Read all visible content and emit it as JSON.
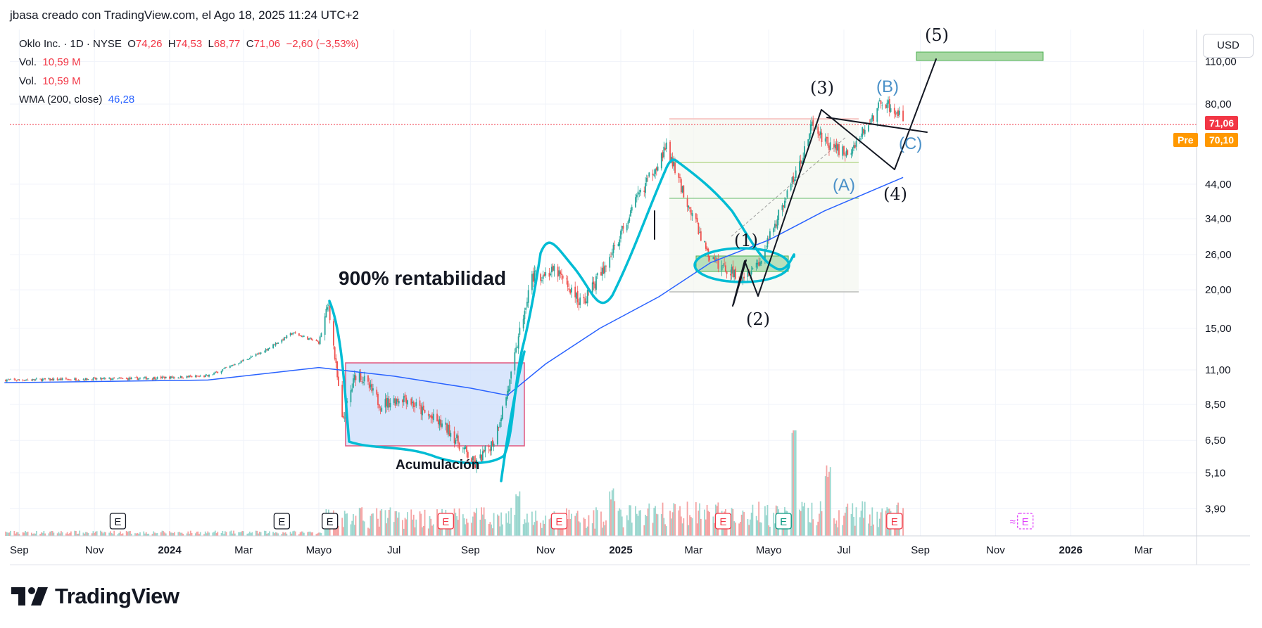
{
  "header": {
    "author_line": "jbasa creado con TradingView.com, el Ago 18, 2025 11:24 UTC+2"
  },
  "legend": {
    "symbol": "Oklo Inc. · 1D · NYSE",
    "o_label": "O",
    "o_value": "74,26",
    "h_label": "H",
    "h_value": "74,53",
    "l_label": "L",
    "l_value": "68,77",
    "c_label": "C",
    "c_value": "71,06",
    "change": "−2,60 (−3,53%)",
    "vol1_label": "Vol.",
    "vol1_value": "10,59 M",
    "vol2_label": "Vol.",
    "vol2_value": "10,59 M",
    "wma_label": "WMA (200, close)",
    "wma_value": "46,28"
  },
  "price_axis": {
    "currency": "USD",
    "ticks": [
      "110,00",
      "80,00",
      "44,00",
      "34,00",
      "26,00",
      "20,00",
      "15,00",
      "11,00",
      "8,50",
      "6,50",
      "5,10",
      "3,90"
    ],
    "last_price_tag": "71,06",
    "pre_label": "Pre",
    "pre_price_tag": "70,10"
  },
  "time_axis": {
    "ticks": [
      "Sep",
      "Nov",
      "2024",
      "Mar",
      "Mayo",
      "Jul",
      "Sep",
      "Nov",
      "2025",
      "Mar",
      "Mayo",
      "Jul",
      "Sep",
      "Nov",
      "2026",
      "Mar"
    ]
  },
  "annotations": {
    "title": "900% rentabilidad",
    "accumulation": "Acumulación",
    "wave_1": "(1)",
    "wave_2": "(2)",
    "wave_3": "(3)",
    "wave_4": "(4)",
    "wave_5": "(5)",
    "wave_a": "(A)",
    "wave_b": "(B)",
    "wave_c": "(C)"
  },
  "events": {
    "earnings_label": "E",
    "dividend_symbol": "≈"
  },
  "brand": {
    "name": "TradingView"
  },
  "colors": {
    "up": "#26a69a",
    "down": "#ef5350",
    "wma": "#2962ff",
    "highlight": "#00bcd4",
    "last_price": "#f23645",
    "pre": "#ff9800",
    "wave_blue": "#4a90c8"
  },
  "chart_data": {
    "type": "candlestick",
    "title": "Oklo Inc. · 1D · NYSE",
    "scale": "log",
    "ylim": [
      3.6,
      125
    ],
    "y_ticks": [
      110,
      80,
      44,
      34,
      26,
      20,
      15,
      11,
      8.5,
      6.5,
      5.1,
      3.9
    ],
    "x_range": [
      "2023-09",
      "2026-04"
    ],
    "price_path": [
      [
        "2023-08-20",
        10.2
      ],
      [
        "2023-12-01",
        10.3
      ],
      [
        "2024-02-01",
        10.5
      ],
      [
        "2024-03-15",
        12.5
      ],
      [
        "2024-04-10",
        14.5
      ],
      [
        "2024-05-01",
        13.5
      ],
      [
        "2024-05-09",
        18.0
      ],
      [
        "2024-05-20",
        7.5
      ],
      [
        "2024-06-01",
        11.0
      ],
      [
        "2024-06-20",
        8.5
      ],
      [
        "2024-07-10",
        9.0
      ],
      [
        "2024-07-25",
        8.0
      ],
      [
        "2024-08-15",
        7.0
      ],
      [
        "2024-09-05",
        5.4
      ],
      [
        "2024-09-20",
        6.5
      ],
      [
        "2024-10-03",
        10.0
      ],
      [
        "2024-10-20",
        22.0
      ],
      [
        "2024-11-10",
        23.0
      ],
      [
        "2024-11-30",
        18.0
      ],
      [
        "2024-12-20",
        24.0
      ],
      [
        "2025-01-15",
        40.0
      ],
      [
        "2025-02-07",
        58.0
      ],
      [
        "2025-02-20",
        42.0
      ],
      [
        "2025-03-15",
        25.0
      ],
      [
        "2025-04-08",
        22.0
      ],
      [
        "2025-04-25",
        25.0
      ],
      [
        "2025-05-10",
        36.0
      ],
      [
        "2025-05-25",
        50.0
      ],
      [
        "2025-06-05",
        68.0
      ],
      [
        "2025-06-20",
        58.0
      ],
      [
        "2025-07-05",
        56.0
      ],
      [
        "2025-07-20",
        68.0
      ],
      [
        "2025-08-01",
        82.0
      ],
      [
        "2025-08-12",
        76.0
      ],
      [
        "2025-08-18",
        71.06
      ]
    ],
    "wma_200": [
      [
        "2023-08-20",
        10.0
      ],
      [
        "2024-02-01",
        10.2
      ],
      [
        "2024-05-01",
        11.2
      ],
      [
        "2024-07-01",
        10.5
      ],
      [
        "2024-09-01",
        9.6
      ],
      [
        "2024-10-01",
        9.1
      ],
      [
        "2024-11-01",
        11.5
      ],
      [
        "2024-12-15",
        15.0
      ],
      [
        "2025-02-01",
        19.0
      ],
      [
        "2025-03-15",
        24.5
      ],
      [
        "2025-05-01",
        29.0
      ],
      [
        "2025-06-15",
        36.0
      ],
      [
        "2025-08-18",
        46.28
      ]
    ],
    "volume_spikes_millions": [
      [
        "2024-10-10",
        60
      ],
      [
        "2024-12-25",
        55
      ],
      [
        "2025-05-22",
        120
      ],
      [
        "2025-06-18",
        70
      ]
    ],
    "last_close": 71.06,
    "premarket": 70.1,
    "earnings_dates": [
      "2023-11-20",
      "2024-04-01",
      "2024-05-10",
      "2024-08-12",
      "2024-11-12",
      "2025-03-25",
      "2025-05-13",
      "2025-08-11"
    ],
    "upcoming_earnings": "2025-11-20"
  }
}
